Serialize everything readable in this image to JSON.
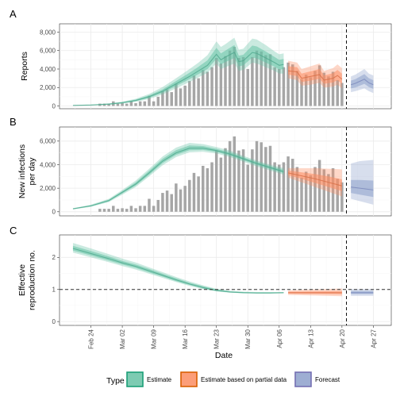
{
  "chart_data": {
    "type": "bar",
    "xlabel": "Date",
    "x_ticks": [
      "Feb 24",
      "Mar 02",
      "Mar 09",
      "Mar 16",
      "Mar 23",
      "Mar 30",
      "Apr 06",
      "Apr 13",
      "Apr 20",
      "Apr 27"
    ],
    "x_tick_dates": [
      "2020-02-24",
      "2020-03-02",
      "2020-03-09",
      "2020-03-16",
      "2020-03-23",
      "2020-03-30",
      "2020-04-06",
      "2020-04-13",
      "2020-04-20",
      "2020-04-27"
    ],
    "x_range": [
      "2020-02-17",
      "2020-05-01"
    ],
    "vline_date": "2020-04-21",
    "legend": {
      "title": "Type",
      "position": "bottom",
      "items": [
        {
          "label": "Estimate",
          "fill": "#66c2a5",
          "stroke": "#1b9e77"
        },
        {
          "label": "Estimate based on partial data",
          "fill": "#fc8d62",
          "stroke": "#d95f02"
        },
        {
          "label": "Forecast",
          "fill": "#8da0cb",
          "stroke": "#7570b3"
        }
      ]
    },
    "reported_cases": {
      "dates": [
        "2020-02-26",
        "2020-02-27",
        "2020-02-28",
        "2020-02-29",
        "2020-03-01",
        "2020-03-02",
        "2020-03-03",
        "2020-03-04",
        "2020-03-05",
        "2020-03-06",
        "2020-03-07",
        "2020-03-08",
        "2020-03-09",
        "2020-03-10",
        "2020-03-11",
        "2020-03-12",
        "2020-03-13",
        "2020-03-14",
        "2020-03-15",
        "2020-03-16",
        "2020-03-17",
        "2020-03-18",
        "2020-03-19",
        "2020-03-20",
        "2020-03-21",
        "2020-03-22",
        "2020-03-23",
        "2020-03-24",
        "2020-03-25",
        "2020-03-26",
        "2020-03-27",
        "2020-03-28",
        "2020-03-29",
        "2020-03-30",
        "2020-03-31",
        "2020-04-01",
        "2020-04-02",
        "2020-04-03",
        "2020-04-04",
        "2020-04-05",
        "2020-04-06",
        "2020-04-07",
        "2020-04-08",
        "2020-04-09",
        "2020-04-10",
        "2020-04-11",
        "2020-04-12",
        "2020-04-13",
        "2020-04-14",
        "2020-04-15",
        "2020-04-16",
        "2020-04-17",
        "2020-04-18",
        "2020-04-19",
        "2020-04-20"
      ],
      "values": [
        250,
        250,
        250,
        500,
        250,
        300,
        250,
        500,
        300,
        500,
        500,
        1100,
        500,
        1000,
        1600,
        1800,
        1500,
        2400,
        1900,
        2200,
        2700,
        3300,
        3000,
        3900,
        3700,
        4200,
        5200,
        4600,
        5400,
        6000,
        6400,
        5200,
        5300,
        4000,
        5300,
        6000,
        5900,
        5500,
        5600,
        4200,
        4000,
        4200,
        4700,
        4500,
        3800,
        2900,
        3400,
        3100,
        3800,
        4400,
        3600,
        3200,
        3700,
        2800,
        2500
      ]
    },
    "panels": [
      {
        "tag": "A",
        "ylabel": "Reports",
        "ylim": [
          -300,
          8900
        ],
        "yticks": [
          0,
          2000,
          4000,
          6000,
          8000
        ],
        "ytick_labels": [
          "0",
          "2,000",
          "4,000",
          "6,000",
          "8,000"
        ],
        "show_bars": true,
        "estimate": {
          "dates": [
            "2020-02-20",
            "2020-02-24",
            "2020-02-28",
            "2020-03-02",
            "2020-03-05",
            "2020-03-08",
            "2020-03-11",
            "2020-03-14",
            "2020-03-17",
            "2020-03-19",
            "2020-03-21",
            "2020-03-23",
            "2020-03-24",
            "2020-03-25",
            "2020-03-27",
            "2020-03-28",
            "2020-03-29",
            "2020-03-31",
            "2020-04-01",
            "2020-04-03",
            "2020-04-05",
            "2020-04-06",
            "2020-04-07"
          ],
          "median": [
            60,
            100,
            200,
            350,
            600,
            1000,
            1600,
            2400,
            3200,
            3800,
            4400,
            5600,
            5000,
            5300,
            5800,
            4800,
            4900,
            5800,
            5700,
            5200,
            4700,
            4400,
            4500
          ],
          "lower90": [
            30,
            60,
            130,
            250,
            450,
            750,
            1250,
            1900,
            2600,
            3100,
            3600,
            4600,
            4000,
            4200,
            4600,
            3800,
            3900,
            4700,
            4600,
            4200,
            3800,
            3500,
            3500
          ],
          "upper90": [
            90,
            150,
            280,
            470,
            780,
            1300,
            2050,
            3000,
            4000,
            4700,
            5500,
            7000,
            6400,
            6700,
            7400,
            6100,
            6200,
            7300,
            7200,
            6600,
            5900,
            5600,
            5700
          ],
          "lower50": [
            45,
            80,
            170,
            300,
            530,
            880,
            1430,
            2160,
            2900,
            3450,
            4000,
            5100,
            4500,
            4750,
            5200,
            4300,
            4400,
            5250,
            5150,
            4700,
            4250,
            3950,
            4000
          ],
          "upper50": [
            75,
            125,
            240,
            410,
            690,
            1150,
            1800,
            2700,
            3600,
            4250,
            4950,
            6300,
            5700,
            6000,
            6600,
            5450,
            5550,
            6550,
            6450,
            5900,
            5300,
            5000,
            5100
          ]
        },
        "partial": {
          "dates": [
            "2020-04-08",
            "2020-04-10",
            "2020-04-11",
            "2020-04-13",
            "2020-04-15",
            "2020-04-16",
            "2020-04-18",
            "2020-04-19",
            "2020-04-20"
          ],
          "median": [
            3800,
            3700,
            3000,
            3200,
            3400,
            2800,
            3000,
            3300,
            2900
          ],
          "lower90": [
            3000,
            2800,
            2200,
            2300,
            2500,
            2000,
            2100,
            2300,
            1900
          ],
          "upper90": [
            4900,
            4700,
            4000,
            4300,
            4600,
            3800,
            4100,
            4500,
            4100
          ],
          "lower50": [
            3400,
            3250,
            2600,
            2750,
            2950,
            2400,
            2550,
            2800,
            2400
          ],
          "upper50": [
            4300,
            4200,
            3500,
            3750,
            4000,
            3300,
            3550,
            3900,
            3500
          ]
        },
        "forecast": {
          "dates": [
            "2020-04-22",
            "2020-04-23",
            "2020-04-25",
            "2020-04-26",
            "2020-04-27"
          ],
          "median": [
            2300,
            2450,
            2900,
            2500,
            2300
          ],
          "lower90": [
            1500,
            1600,
            1900,
            1600,
            1400
          ],
          "upper90": [
            3200,
            3400,
            4000,
            3500,
            3300
          ],
          "lower50": [
            1900,
            2000,
            2400,
            2050,
            1850
          ],
          "upper50": [
            2750,
            2900,
            3450,
            3000,
            2800
          ]
        }
      },
      {
        "tag": "B",
        "ylabel": "New infections per day",
        "ylabel_lines": [
          "New infections",
          "per day"
        ],
        "ylim": [
          -350,
          7200
        ],
        "yticks": [
          0,
          2000,
          4000,
          6000
        ],
        "ytick_labels": [
          "0",
          "2,000",
          "4,000",
          "6,000"
        ],
        "show_bars": true,
        "estimate": {
          "dates": [
            "2020-02-20",
            "2020-02-24",
            "2020-02-28",
            "2020-03-02",
            "2020-03-05",
            "2020-03-08",
            "2020-03-11",
            "2020-03-14",
            "2020-03-17",
            "2020-03-20",
            "2020-03-23",
            "2020-03-26",
            "2020-03-29",
            "2020-04-01",
            "2020-04-04",
            "2020-04-07"
          ],
          "median": [
            250,
            500,
            950,
            1650,
            2350,
            3300,
            4300,
            5000,
            5400,
            5400,
            5200,
            4900,
            4500,
            4100,
            3750,
            3400
          ],
          "lower90": [
            200,
            420,
            820,
            1450,
            2100,
            3000,
            3950,
            4650,
            5050,
            5100,
            4950,
            4650,
            4250,
            3850,
            3500,
            3150
          ],
          "upper90": [
            300,
            600,
            1100,
            1850,
            2650,
            3650,
            4700,
            5450,
            5850,
            5750,
            5500,
            5200,
            4750,
            4350,
            4000,
            3700
          ],
          "lower50": [
            225,
            460,
            885,
            1550,
            2230,
            3150,
            4130,
            4830,
            5230,
            5250,
            5080,
            4780,
            4380,
            3980,
            3630,
            3280
          ],
          "upper50": [
            275,
            550,
            1025,
            1750,
            2500,
            3480,
            4500,
            5230,
            5630,
            5580,
            5350,
            5050,
            4630,
            4230,
            3880,
            3550
          ]
        },
        "partial": {
          "dates": [
            "2020-04-08",
            "2020-04-11",
            "2020-04-14",
            "2020-04-17",
            "2020-04-20"
          ],
          "median": [
            3300,
            3050,
            2800,
            2500,
            2200
          ],
          "lower90": [
            2900,
            2500,
            2100,
            1700,
            1300
          ],
          "upper90": [
            3700,
            3700,
            3700,
            3650,
            3600
          ],
          "lower50": [
            3100,
            2800,
            2450,
            2100,
            1750
          ],
          "upper50": [
            3500,
            3350,
            3200,
            3000,
            2750
          ]
        },
        "forecast": {
          "dates": [
            "2020-04-22",
            "2020-04-24",
            "2020-04-27"
          ],
          "median": [
            2100,
            2000,
            1850
          ],
          "lower90": [
            1100,
            900,
            600
          ],
          "upper90": [
            4100,
            4300,
            4400
          ],
          "lower50": [
            1600,
            1450,
            1250
          ],
          "upper50": [
            2700,
            2700,
            2650
          ]
        }
      },
      {
        "tag": "C",
        "ylabel": "Effective reproduction no.",
        "ylabel_lines": [
          "Effective",
          "reproduction no."
        ],
        "ylim": [
          -0.12,
          2.7
        ],
        "yticks": [
          0,
          1,
          2
        ],
        "ytick_labels": [
          "0",
          "1",
          "2"
        ],
        "hline": 1,
        "show_bars": false,
        "estimate": {
          "dates": [
            "2020-02-20",
            "2020-02-24",
            "2020-02-28",
            "2020-03-02",
            "2020-03-05",
            "2020-03-08",
            "2020-03-11",
            "2020-03-14",
            "2020-03-17",
            "2020-03-20",
            "2020-03-23",
            "2020-03-26",
            "2020-03-29",
            "2020-04-01",
            "2020-04-04",
            "2020-04-07"
          ],
          "median": [
            2.28,
            2.12,
            1.96,
            1.83,
            1.72,
            1.58,
            1.44,
            1.3,
            1.17,
            1.06,
            0.97,
            0.92,
            0.9,
            0.89,
            0.89,
            0.9
          ],
          "lower90": [
            2.15,
            2.0,
            1.85,
            1.73,
            1.62,
            1.49,
            1.36,
            1.23,
            1.11,
            1.01,
            0.94,
            0.9,
            0.88,
            0.88,
            0.88,
            0.88
          ],
          "upper90": [
            2.45,
            2.28,
            2.1,
            1.96,
            1.84,
            1.69,
            1.54,
            1.39,
            1.25,
            1.13,
            1.02,
            0.96,
            0.93,
            0.92,
            0.92,
            0.92
          ],
          "lower50": [
            2.21,
            2.06,
            1.9,
            1.78,
            1.67,
            1.53,
            1.4,
            1.26,
            1.14,
            1.03,
            0.95,
            0.91,
            0.89,
            0.88,
            0.88,
            0.89
          ],
          "upper50": [
            2.36,
            2.2,
            2.03,
            1.89,
            1.78,
            1.64,
            1.49,
            1.35,
            1.21,
            1.1,
            1.0,
            0.94,
            0.92,
            0.91,
            0.91,
            0.91
          ]
        },
        "partial": {
          "dates": [
            "2020-04-08",
            "2020-04-14",
            "2020-04-20"
          ],
          "median": [
            0.9,
            0.9,
            0.9
          ],
          "lower90": [
            0.83,
            0.81,
            0.79
          ],
          "upper90": [
            0.97,
            1.0,
            1.03
          ],
          "lower50": [
            0.87,
            0.86,
            0.85
          ],
          "upper50": [
            0.93,
            0.94,
            0.95
          ]
        },
        "forecast": {
          "dates": [
            "2020-04-22",
            "2020-04-27"
          ],
          "median": [
            0.9,
            0.9
          ],
          "lower90": [
            0.8,
            0.8
          ],
          "upper90": [
            1.01,
            1.01
          ],
          "lower50": [
            0.86,
            0.86
          ],
          "upper50": [
            0.95,
            0.95
          ]
        }
      }
    ]
  }
}
